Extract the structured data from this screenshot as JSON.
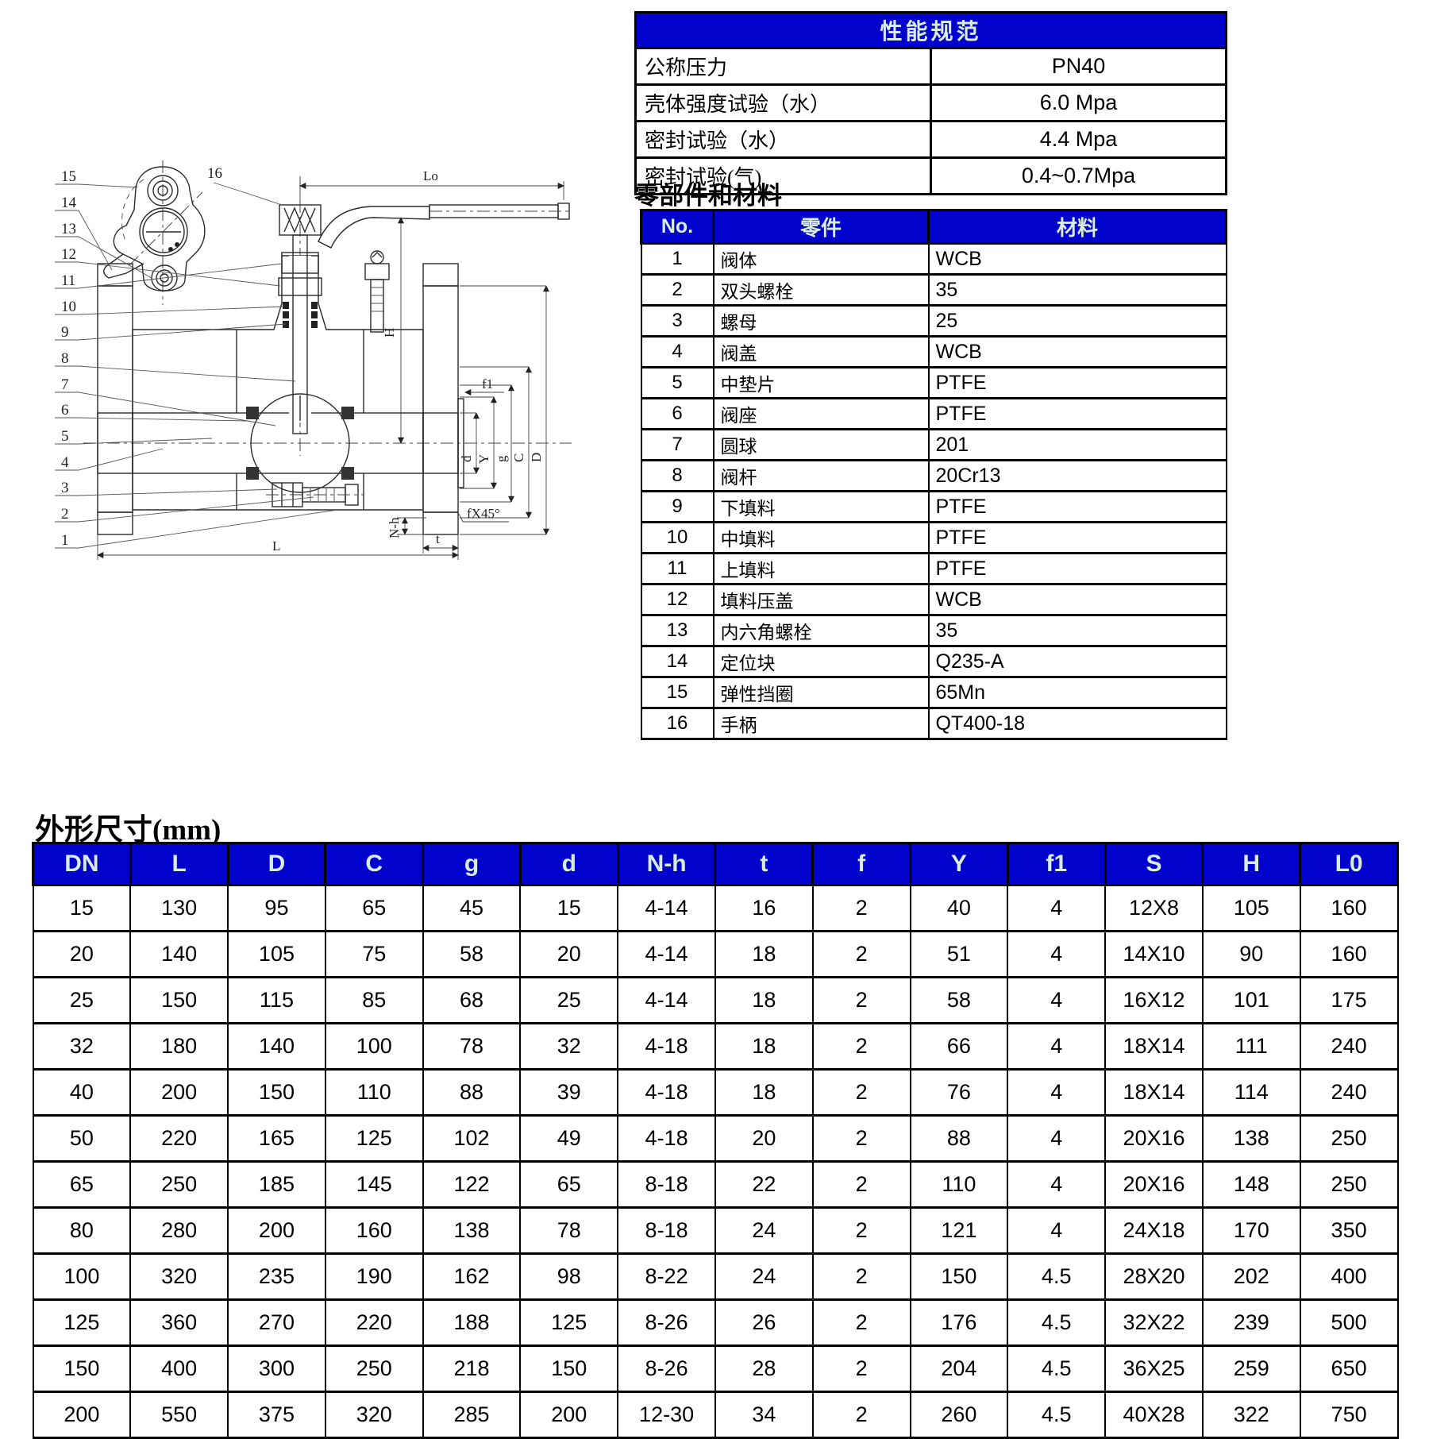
{
  "spec_table": {
    "title": "性能规范",
    "rows": [
      {
        "label": "公称压力",
        "value": "PN40"
      },
      {
        "label": "壳体强度试验（水）",
        "value": "6.0 Mpa"
      },
      {
        "label": "密封试验（水）",
        "value": "4.4 Mpa"
      },
      {
        "label": "密封试验(气)",
        "value": "0.4~0.7Mpa"
      }
    ]
  },
  "parts_section": {
    "heading": "零部件和材料",
    "columns": [
      "No.",
      "零件",
      "材料"
    ],
    "rows": [
      [
        "1",
        "阀体",
        "WCB"
      ],
      [
        "2",
        "双头螺栓",
        "35"
      ],
      [
        "3",
        "螺母",
        "25"
      ],
      [
        "4",
        "阀盖",
        "WCB"
      ],
      [
        "5",
        "中垫片",
        "PTFE"
      ],
      [
        "6",
        "阀座",
        "PTFE"
      ],
      [
        "7",
        "圆球",
        "201"
      ],
      [
        "8",
        "阀杆",
        "20Cr13"
      ],
      [
        "9",
        "下填料",
        "PTFE"
      ],
      [
        "10",
        "中填料",
        "PTFE"
      ],
      [
        "11",
        "上填料",
        "PTFE"
      ],
      [
        "12",
        "填料压盖",
        "WCB"
      ],
      [
        "13",
        "内六角螺栓",
        "35"
      ],
      [
        "14",
        "定位块",
        "Q235-A"
      ],
      [
        "15",
        "弹性挡圈",
        "65Mn"
      ],
      [
        "16",
        "手柄",
        "QT400-18"
      ]
    ]
  },
  "dims_section": {
    "heading": "外形尺寸(mm)",
    "columns": [
      "DN",
      "L",
      "D",
      "C",
      "g",
      "d",
      "N-h",
      "t",
      "f",
      "Y",
      "f1",
      "S",
      "H",
      "L0"
    ],
    "rows": [
      [
        "15",
        "130",
        "95",
        "65",
        "45",
        "15",
        "4-14",
        "16",
        "2",
        "40",
        "4",
        "12X8",
        "105",
        "160"
      ],
      [
        "20",
        "140",
        "105",
        "75",
        "58",
        "20",
        "4-14",
        "18",
        "2",
        "51",
        "4",
        "14X10",
        "90",
        "160"
      ],
      [
        "25",
        "150",
        "115",
        "85",
        "68",
        "25",
        "4-14",
        "18",
        "2",
        "58",
        "4",
        "16X12",
        "101",
        "175"
      ],
      [
        "32",
        "180",
        "140",
        "100",
        "78",
        "32",
        "4-18",
        "18",
        "2",
        "66",
        "4",
        "18X14",
        "111",
        "240"
      ],
      [
        "40",
        "200",
        "150",
        "110",
        "88",
        "39",
        "4-18",
        "18",
        "2",
        "76",
        "4",
        "18X14",
        "114",
        "240"
      ],
      [
        "50",
        "220",
        "165",
        "125",
        "102",
        "49",
        "4-18",
        "20",
        "2",
        "88",
        "4",
        "20X16",
        "138",
        "250"
      ],
      [
        "65",
        "250",
        "185",
        "145",
        "122",
        "65",
        "8-18",
        "22",
        "2",
        "110",
        "4",
        "20X16",
        "148",
        "250"
      ],
      [
        "80",
        "280",
        "200",
        "160",
        "138",
        "78",
        "8-18",
        "24",
        "2",
        "121",
        "4",
        "24X18",
        "170",
        "350"
      ],
      [
        "100",
        "320",
        "235",
        "190",
        "162",
        "98",
        "8-22",
        "24",
        "2",
        "150",
        "4.5",
        "28X20",
        "202",
        "400"
      ],
      [
        "125",
        "360",
        "270",
        "220",
        "188",
        "125",
        "8-26",
        "26",
        "2",
        "176",
        "4.5",
        "32X22",
        "239",
        "500"
      ],
      [
        "150",
        "400",
        "300",
        "250",
        "218",
        "150",
        "8-26",
        "28",
        "2",
        "204",
        "4.5",
        "36X25",
        "259",
        "650"
      ],
      [
        "200",
        "550",
        "375",
        "320",
        "285",
        "200",
        "12-30",
        "34",
        "2",
        "260",
        "4.5",
        "40X28",
        "322",
        "750"
      ]
    ]
  },
  "drawing": {
    "part_numbers": [
      "15",
      "14",
      "13",
      "12",
      "11",
      "10",
      "9",
      "8",
      "7",
      "6",
      "5",
      "4",
      "3",
      "2",
      "1"
    ],
    "callout_16": "16",
    "dim_labels": {
      "lo": "Lo",
      "h": "H",
      "f1": "f1",
      "d": "d",
      "y": "Y",
      "g": "g",
      "c": "C",
      "big_d": "D",
      "n_h": "N-h",
      "chamfer": "fX45°",
      "t": "t",
      "l": "L"
    }
  }
}
